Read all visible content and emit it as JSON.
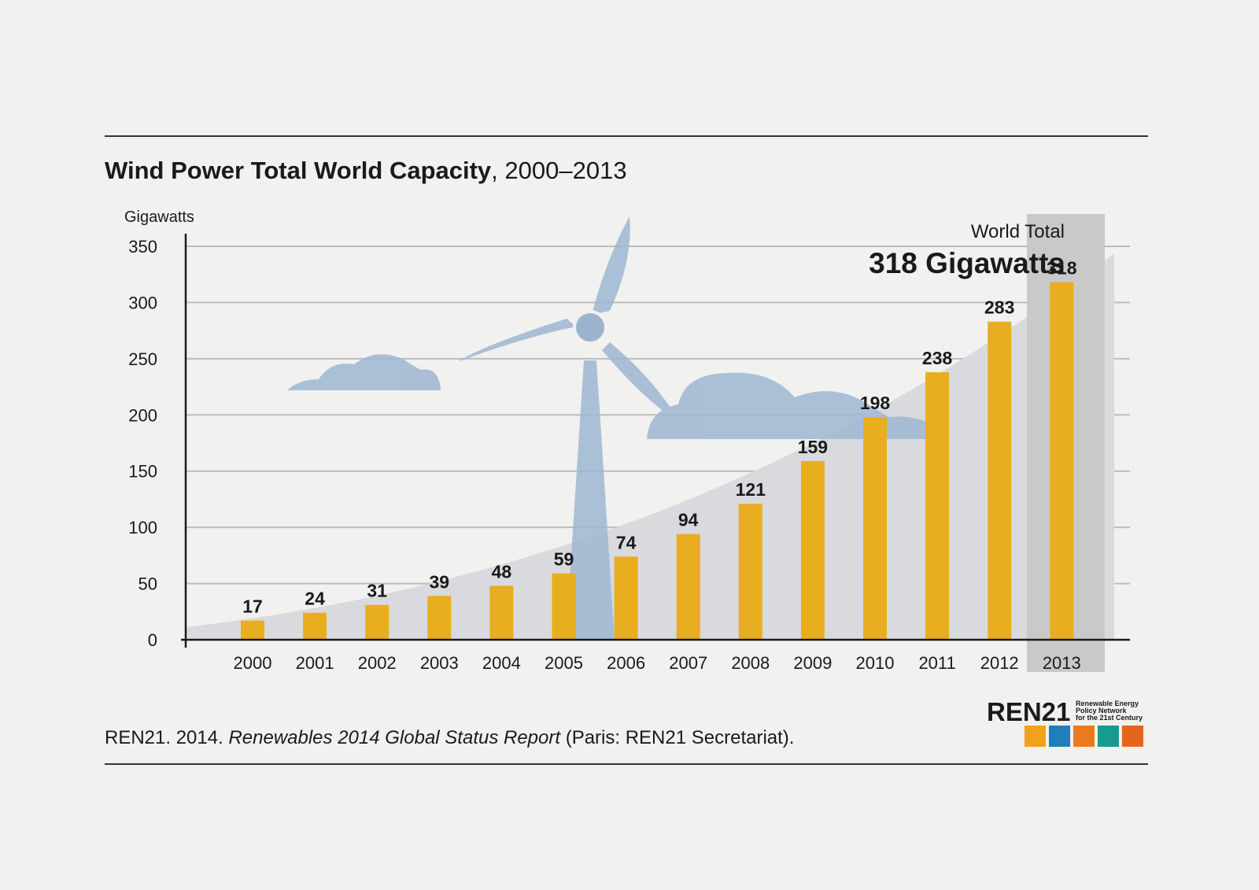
{
  "chart_data": {
    "type": "bar",
    "title": "Wind Power Total World Capacity",
    "subtitle": ", 2000–2013",
    "y_label": "Gigawatts",
    "categories": [
      "2000",
      "2001",
      "2002",
      "2003",
      "2004",
      "2005",
      "2006",
      "2007",
      "2008",
      "2009",
      "2010",
      "2011",
      "2012",
      "2013"
    ],
    "values": [
      17,
      24,
      31,
      39,
      48,
      59,
      74,
      94,
      121,
      159,
      198,
      238,
      283,
      318
    ],
    "color": "#e9ad20",
    "ylim": [
      0,
      350
    ],
    "yticks": [
      0,
      50,
      100,
      150,
      200,
      250,
      300,
      350
    ],
    "grid": true,
    "annotations": [
      "World Total",
      "318 Gigawatts"
    ],
    "source": [
      "REN21. 2014. ",
      "Renewables 2014 Global Status Report",
      " (Paris: REN21 Secretariat)."
    ],
    "logo": {
      "name": "REN21",
      "tagline": [
        "Renewable Energy",
        "Policy Network",
        "for the 21st Century"
      ]
    }
  }
}
